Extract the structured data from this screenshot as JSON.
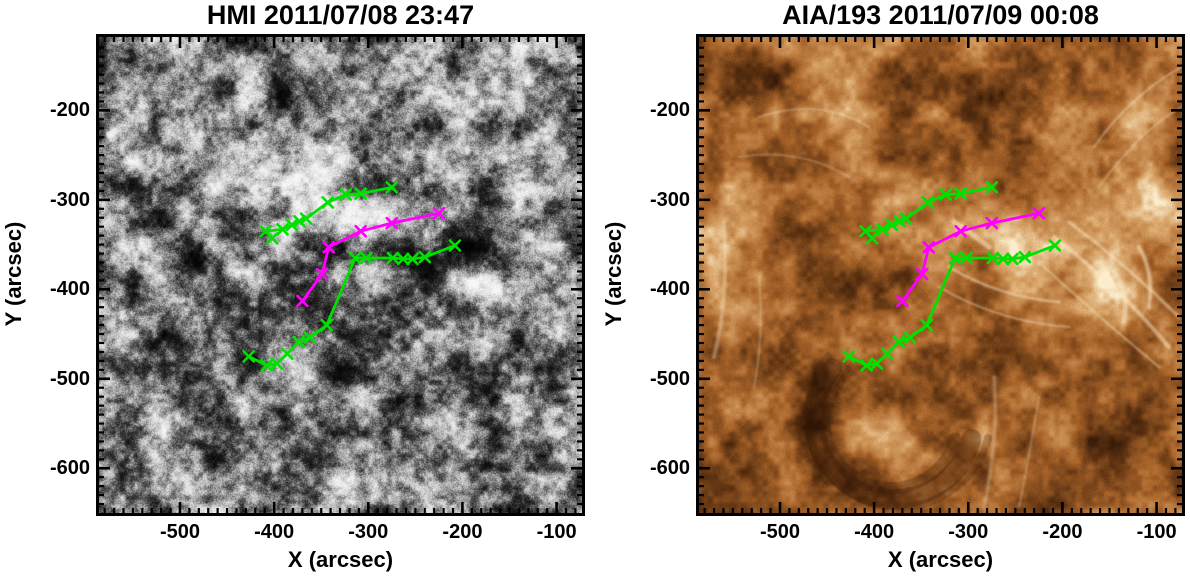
{
  "chart_data": {
    "type": "line",
    "description": "Two co-aligned solar image panels (HMI magnetogram and AIA 193 EUV) with identical traced curve overlays plotted in solar arcsec coordinates",
    "panels": [
      {
        "title": "HMI 2011/07/08 23:47",
        "xlabel": "X (arcsec)",
        "ylabel": "Y (arcsec)",
        "x_ticks": [
          -500,
          -400,
          -300,
          -200,
          -100
        ],
        "y_ticks": [
          -200,
          -300,
          -400,
          -500,
          -600
        ],
        "xlim": [
          -586,
          -73
        ],
        "ylim": [
          -650,
          -118
        ],
        "minor_tick_step": 10,
        "grid": false,
        "image": "grayscale photospheric magnetogram: salt-and-pepper gray granulation with saturated black and white magnetic flux patches"
      },
      {
        "title": "AIA/193 2011/07/09 00:08",
        "xlabel": "X (arcsec)",
        "ylabel": "Y (arcsec)",
        "x_ticks": [
          -500,
          -400,
          -300,
          -200,
          -100
        ],
        "y_ticks": [
          -200,
          -300,
          -400,
          -500,
          -600
        ],
        "xlim": [
          -586,
          -73
        ],
        "ylim": [
          -650,
          -118
        ],
        "minor_tick_step": 10,
        "grid": false,
        "image": "copper/orange EUV 193 angstrom corona: bright active-region loops right of center, dark filament-channel crescent at lower left"
      }
    ],
    "series": [
      {
        "name": "upper green trace",
        "color": "#00e100",
        "marker": "x",
        "points": [
          [
            -402,
            -343
          ],
          [
            -409,
            -335
          ],
          [
            -391,
            -333
          ],
          [
            -381,
            -328
          ],
          [
            -373,
            -324
          ],
          [
            -366,
            -321
          ],
          [
            -343,
            -303
          ],
          [
            -324,
            -294
          ],
          [
            -308,
            -293
          ],
          [
            -275,
            -286
          ]
        ]
      },
      {
        "name": "magenta trace",
        "color": "#ff00ff",
        "marker": "x",
        "points": [
          [
            -225,
            -315
          ],
          [
            -275,
            -326
          ],
          [
            -308,
            -335
          ],
          [
            -342,
            -353
          ],
          [
            -349,
            -383
          ],
          [
            -370,
            -413
          ]
        ]
      },
      {
        "name": "lower green trace",
        "color": "#00e100",
        "marker": "x",
        "points": [
          [
            -208,
            -351
          ],
          [
            -240,
            -364
          ],
          [
            -253,
            -366
          ],
          [
            -263,
            -366
          ],
          [
            -274,
            -365
          ],
          [
            -302,
            -365
          ],
          [
            -314,
            -365
          ],
          [
            -344,
            -440
          ],
          [
            -362,
            -454
          ],
          [
            -374,
            -459
          ],
          [
            -386,
            -472
          ],
          [
            -397,
            -483
          ],
          [
            -408,
            -485
          ],
          [
            -427,
            -475
          ]
        ]
      }
    ],
    "overlay_note": "the same three traced curves are drawn on both panels"
  }
}
